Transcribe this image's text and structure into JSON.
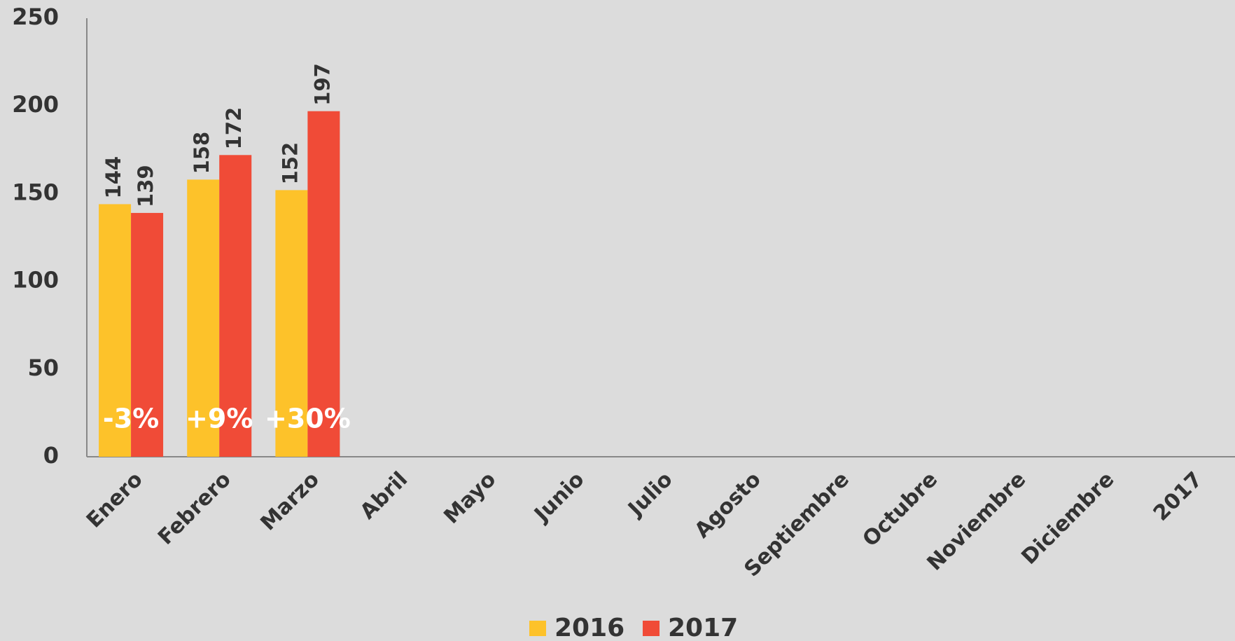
{
  "chart_data": {
    "type": "bar",
    "categories": [
      "Enero",
      "Febrero",
      "Marzo",
      "Abril",
      "Mayo",
      "Junio",
      "Julio",
      "Agosto",
      "Septiembre",
      "Octubre",
      "Noviembre",
      "Diciembre",
      "2017"
    ],
    "series": [
      {
        "name": "2016",
        "color": "#fdc22a",
        "values": [
          144,
          158,
          152,
          null,
          null,
          null,
          null,
          null,
          null,
          null,
          null,
          null,
          null
        ]
      },
      {
        "name": "2017",
        "color": "#f04b37",
        "values": [
          139,
          172,
          197,
          null,
          null,
          null,
          null,
          null,
          null,
          null,
          null,
          null,
          null
        ]
      }
    ],
    "change_labels": [
      "-3%",
      "+9%",
      "+30%"
    ],
    "ylim": [
      0,
      250
    ],
    "yticks": [
      0,
      50,
      100,
      150,
      200,
      250
    ],
    "grid": false,
    "legend": "bottom"
  }
}
